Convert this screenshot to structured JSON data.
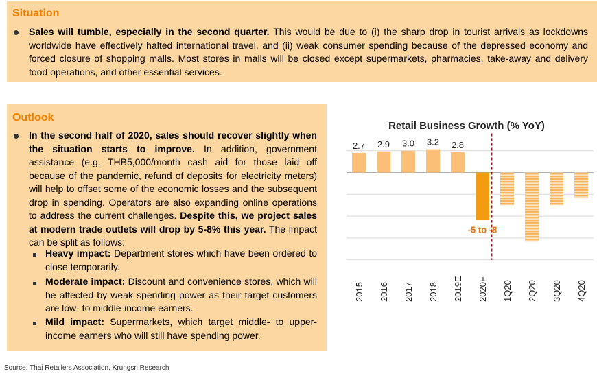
{
  "situation": {
    "title": "Situation",
    "bold": "Sales will tumble, especially in the second quarter.",
    "text": " This would be due to (i) the sharp drop in tourist arrivals as lockdowns worldwide have effectively halted international travel, and (ii) weak consumer spending because of the depressed economy and forced closure of shopping malls. Most stores in malls will be closed except supermarkets, pharmacies, take-away and delivery food operations, and other essential services."
  },
  "outlook": {
    "title": "Outlook",
    "bold1": "In the second half of 2020, sales should recover slightly when the situation starts to improve.",
    "text1": " In addition, government assistance (e.g. THB5,000/month cash aid for those laid off because of the pandemic, refund of deposits for electricity meters) will help to offset some of the economic losses and the subsequent drop in spending. Operators are also expanding online operations to address the current challenges. ",
    "bold2": "Despite this, we project sales at modern trade outlets will drop by 5-8% this year.",
    "text2": " The impact can be split as follows:",
    "impacts": [
      {
        "bold": "Heavy impact:",
        "text": " Department stores which have been ordered to close temporarily."
      },
      {
        "bold": "Moderate impact:",
        "text": " Discount and convenience stores, which will be affected by weak spending power as their target customers are low- to middle-income earners."
      },
      {
        "bold": "Mild impact:",
        "text": " Supermarkets, which target middle- to upper-income earners who will still have spending power."
      }
    ]
  },
  "source": "Source: Thai Retailers Association, Krungsri Research",
  "chart_data": {
    "type": "bar",
    "title": "Retail Business Growth (% YoY)",
    "categories": [
      "2015",
      "2016",
      "2017",
      "2018",
      "2019E",
      "2020F",
      "1Q20",
      "2Q20",
      "3Q20",
      "4Q20"
    ],
    "values": [
      2.7,
      2.9,
      3.0,
      3.2,
      2.8,
      -6.5,
      -4.5,
      -9.5,
      -4.5,
      -3.5
    ],
    "data_labels": [
      "2.7",
      "2.9",
      "3.0",
      "3.2",
      "2.8",
      "-5 to -8",
      "",
      "",
      "",
      ""
    ],
    "ylim": [
      -12,
      5
    ],
    "grid": true,
    "colors": {
      "actual": "#fbbf77",
      "forecast": "#f39c12",
      "quarterly": "#f7b55f",
      "divider": "#a0151e"
    }
  }
}
